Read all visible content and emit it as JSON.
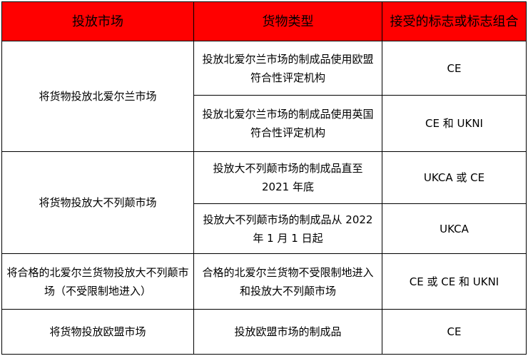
{
  "header": {
    "market": "投放市场",
    "goods_type": "货物类型",
    "marking": "接受的标志或标志组合"
  },
  "header_color": "#ff0000",
  "rows": [
    {
      "market": "将货物投放北爱尔兰市场",
      "goods": "投放北爱尔兰市场的制成品使用欧盟符合性评定机构",
      "marking": "CE"
    },
    {
      "goods": "投放北爱尔兰市场的制成品使用英国符合性评定机构",
      "marking": "CE 和 UKNI"
    },
    {
      "market": "将货物投放大不列颠市场",
      "goods": "投放大不列颠市场的制成品直至 2021 年底",
      "marking": "UKCA 或 CE"
    },
    {
      "goods": "投放大不列颠市场的制成品从 2022 年 1 月 1 日起",
      "marking": "UKCA"
    },
    {
      "market": "将合格的北爱尔兰货物投放大不列颠市场（不受限制地进入）",
      "goods": "合格的北爱尔兰货物不受限制地进入和投放大不列颠市场",
      "marking": "CE 或 CE 和 UKNI"
    },
    {
      "market": "将货物投放欧盟市场",
      "goods": "投放欧盟市场的制成品",
      "marking": "CE"
    }
  ]
}
